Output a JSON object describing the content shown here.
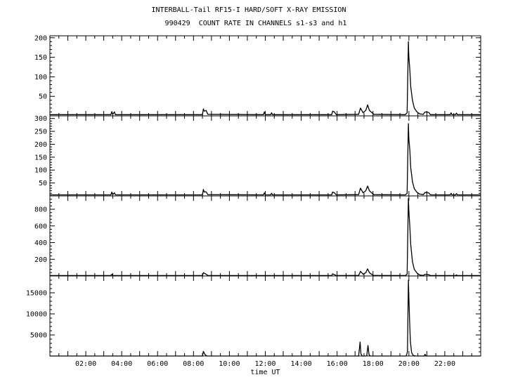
{
  "chart_data": {
    "type": "line",
    "title": "INTERBALL-Tail RF15-I HARD/SOFT X-RAY EMISSION",
    "subtitle": "990429  COUNT RATE IN CHANNELS s1-s3 and h1",
    "xlabel": "time UT",
    "xlim_hours": [
      0,
      24
    ],
    "x_tick_labels": [
      "02:00",
      "04:00",
      "06:00",
      "08:00",
      "10:00",
      "12:00",
      "14:00",
      "16:00",
      "18:00",
      "20:00",
      "22:00"
    ],
    "x_ticks_hours": [
      2,
      4,
      6,
      8,
      10,
      12,
      14,
      16,
      18,
      20,
      22
    ],
    "panels": [
      {
        "ylim": [
          0,
          205
        ],
        "yticks": [
          50,
          100,
          150,
          200
        ],
        "ytick_labels": [
          "50",
          "100",
          "150",
          "200"
        ],
        "points": [
          [
            0,
            3
          ],
          [
            3.4,
            3
          ],
          [
            3.45,
            11
          ],
          [
            3.5,
            4
          ],
          [
            3.6,
            10
          ],
          [
            3.65,
            3
          ],
          [
            8.5,
            3
          ],
          [
            8.55,
            18
          ],
          [
            8.6,
            12
          ],
          [
            8.7,
            14
          ],
          [
            8.8,
            4
          ],
          [
            11.9,
            3
          ],
          [
            11.95,
            10
          ],
          [
            12.0,
            3
          ],
          [
            12.3,
            3
          ],
          [
            12.35,
            8
          ],
          [
            12.4,
            3
          ],
          [
            15.7,
            3
          ],
          [
            15.75,
            12
          ],
          [
            15.85,
            10
          ],
          [
            15.95,
            3
          ],
          [
            17.2,
            4
          ],
          [
            17.3,
            20
          ],
          [
            17.45,
            8
          ],
          [
            17.6,
            14
          ],
          [
            17.7,
            28
          ],
          [
            17.8,
            14
          ],
          [
            17.95,
            8
          ],
          [
            18.05,
            4
          ],
          [
            19.8,
            3
          ],
          [
            19.9,
            8
          ],
          [
            19.97,
            190
          ],
          [
            20.0,
            150
          ],
          [
            20.05,
            120
          ],
          [
            20.1,
            75
          ],
          [
            20.2,
            40
          ],
          [
            20.3,
            20
          ],
          [
            20.45,
            10
          ],
          [
            20.6,
            5
          ],
          [
            20.8,
            4
          ],
          [
            20.9,
            10
          ],
          [
            21.1,
            9
          ],
          [
            21.2,
            3
          ],
          [
            22.3,
            3
          ],
          [
            22.35,
            8
          ],
          [
            22.4,
            3
          ],
          [
            22.6,
            3
          ],
          [
            22.65,
            7
          ],
          [
            22.7,
            3
          ],
          [
            24,
            3
          ]
        ]
      },
      {
        "ylim": [
          0,
          310
        ],
        "yticks": [
          50,
          100,
          150,
          200,
          250,
          300
        ],
        "ytick_labels": [
          "50",
          "100",
          "150",
          "200",
          "250",
          "300"
        ],
        "points": [
          [
            0,
            4
          ],
          [
            3.4,
            4
          ],
          [
            3.45,
            15
          ],
          [
            3.5,
            5
          ],
          [
            3.6,
            12
          ],
          [
            3.65,
            4
          ],
          [
            8.5,
            4
          ],
          [
            8.55,
            25
          ],
          [
            8.6,
            15
          ],
          [
            8.7,
            16
          ],
          [
            8.8,
            5
          ],
          [
            11.9,
            4
          ],
          [
            11.95,
            12
          ],
          [
            12.0,
            4
          ],
          [
            12.3,
            4
          ],
          [
            12.35,
            10
          ],
          [
            12.4,
            4
          ],
          [
            15.7,
            4
          ],
          [
            15.75,
            15
          ],
          [
            15.85,
            12
          ],
          [
            15.95,
            4
          ],
          [
            17.2,
            5
          ],
          [
            17.3,
            30
          ],
          [
            17.45,
            12
          ],
          [
            17.6,
            20
          ],
          [
            17.7,
            38
          ],
          [
            17.8,
            20
          ],
          [
            17.95,
            10
          ],
          [
            18.05,
            5
          ],
          [
            19.8,
            4
          ],
          [
            19.9,
            10
          ],
          [
            19.97,
            280
          ],
          [
            20.0,
            220
          ],
          [
            20.05,
            180
          ],
          [
            20.1,
            110
          ],
          [
            20.2,
            55
          ],
          [
            20.3,
            28
          ],
          [
            20.45,
            14
          ],
          [
            20.6,
            7
          ],
          [
            20.8,
            5
          ],
          [
            20.9,
            13
          ],
          [
            21.1,
            12
          ],
          [
            21.2,
            4
          ],
          [
            22.3,
            4
          ],
          [
            22.35,
            10
          ],
          [
            22.4,
            4
          ],
          [
            22.6,
            4
          ],
          [
            22.65,
            9
          ],
          [
            22.7,
            4
          ],
          [
            24,
            4
          ]
        ]
      },
      {
        "ylim": [
          0,
          960
        ],
        "yticks": [
          200,
          400,
          600,
          800
        ],
        "ytick_labels": [
          "200",
          "400",
          "600",
          "800"
        ],
        "points": [
          [
            0,
            5
          ],
          [
            3.4,
            5
          ],
          [
            3.45,
            20
          ],
          [
            3.5,
            6
          ],
          [
            8.5,
            5
          ],
          [
            8.55,
            40
          ],
          [
            8.7,
            20
          ],
          [
            8.8,
            6
          ],
          [
            15.7,
            5
          ],
          [
            15.75,
            25
          ],
          [
            15.95,
            5
          ],
          [
            17.2,
            6
          ],
          [
            17.3,
            55
          ],
          [
            17.45,
            20
          ],
          [
            17.6,
            40
          ],
          [
            17.7,
            85
          ],
          [
            17.8,
            40
          ],
          [
            17.95,
            15
          ],
          [
            18.05,
            6
          ],
          [
            19.8,
            5
          ],
          [
            19.9,
            20
          ],
          [
            19.97,
            930
          ],
          [
            20.0,
            780
          ],
          [
            20.05,
            600
          ],
          [
            20.1,
            380
          ],
          [
            20.2,
            170
          ],
          [
            20.3,
            80
          ],
          [
            20.45,
            35
          ],
          [
            20.6,
            12
          ],
          [
            20.8,
            6
          ],
          [
            20.9,
            20
          ],
          [
            21.1,
            15
          ],
          [
            21.2,
            5
          ],
          [
            22.6,
            5
          ],
          [
            22.65,
            12
          ],
          [
            22.7,
            5
          ],
          [
            24,
            5
          ]
        ]
      },
      {
        "ylim": [
          0,
          19000
        ],
        "yticks": [
          5000,
          10000,
          15000
        ],
        "ytick_labels": [
          "5000",
          "10000",
          "15000"
        ],
        "points": [
          [
            0,
            0
          ],
          [
            8.5,
            0
          ],
          [
            8.55,
            1100
          ],
          [
            8.65,
            300
          ],
          [
            8.75,
            0
          ],
          [
            17.2,
            0
          ],
          [
            17.28,
            3300
          ],
          [
            17.33,
            500
          ],
          [
            17.4,
            0
          ],
          [
            17.65,
            0
          ],
          [
            17.72,
            2500
          ],
          [
            17.78,
            300
          ],
          [
            17.85,
            0
          ],
          [
            19.85,
            0
          ],
          [
            19.92,
            1000
          ],
          [
            19.97,
            18000
          ],
          [
            20.0,
            14000
          ],
          [
            20.04,
            8000
          ],
          [
            20.08,
            3500
          ],
          [
            20.15,
            800
          ],
          [
            20.25,
            100
          ],
          [
            20.4,
            0
          ],
          [
            20.85,
            0
          ],
          [
            20.9,
            400
          ],
          [
            20.95,
            0
          ],
          [
            24,
            0
          ]
        ]
      }
    ]
  }
}
